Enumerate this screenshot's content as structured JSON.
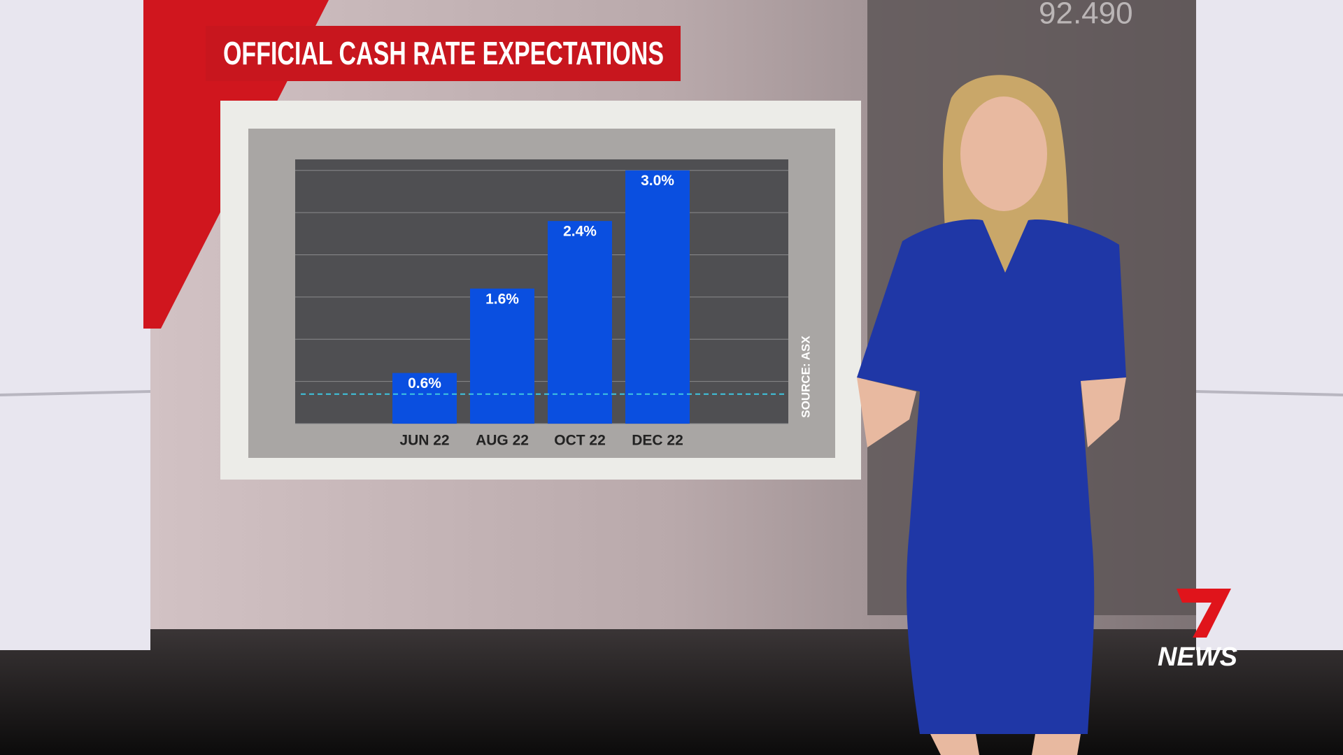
{
  "chart_data": {
    "type": "bar",
    "title": "OFFICIAL CASH RATE EXPECTATIONS",
    "categories": [
      "JUN 22",
      "AUG 22",
      "OCT 22",
      "DEC 22"
    ],
    "values": [
      0.6,
      1.6,
      2.4,
      3.0
    ],
    "value_labels": [
      "0.6%",
      "1.6%",
      "2.4%",
      "3.0%"
    ],
    "color": "#0a4fe0",
    "ylim": [
      0,
      3.13
    ],
    "yticks": [
      0,
      0.5,
      1.0,
      1.5,
      2.0,
      2.5,
      3.0
    ],
    "grid": true,
    "reference_line": 0.35,
    "reference_color": "#3fc6e0",
    "source": "SOURCE: ASX"
  },
  "background_text": "92.490",
  "logo": {
    "number": "7",
    "text": "NEWS"
  }
}
